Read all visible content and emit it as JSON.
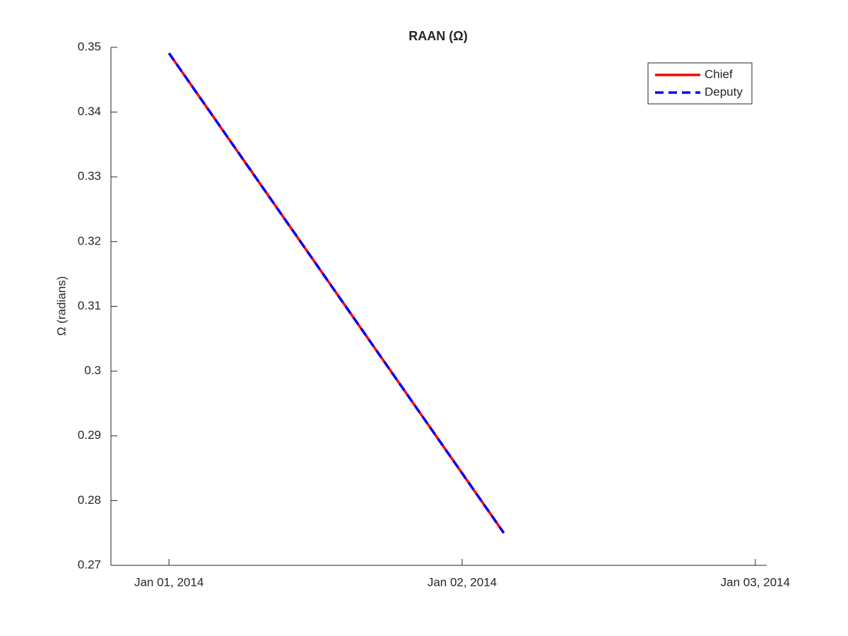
{
  "chart_data": {
    "type": "line",
    "title": "RAAN (Ω)",
    "y_label": "Ω (radians)",
    "x": [
      0,
      1.142
    ],
    "xlim": [
      -0.198,
      2.039
    ],
    "xticks": [
      {
        "value": 0,
        "label": "Jan 01, 2014"
      },
      {
        "value": 1,
        "label": "Jan 02, 2014"
      },
      {
        "value": 2,
        "label": "Jan 03, 2014"
      }
    ],
    "ylim": [
      0.27,
      0.35
    ],
    "yticks": [
      0.27,
      0.28,
      0.29,
      0.3,
      0.31,
      0.32,
      0.33,
      0.34,
      0.35
    ],
    "grid": false,
    "legend": "top-right",
    "series": [
      {
        "name": "Chief",
        "color": "#ff0000",
        "dash": false,
        "values": [
          0.3491,
          0.275
        ]
      },
      {
        "name": "Deputy",
        "color": "#0000ff",
        "dash": true,
        "values": [
          0.3491,
          0.275
        ]
      }
    ]
  }
}
